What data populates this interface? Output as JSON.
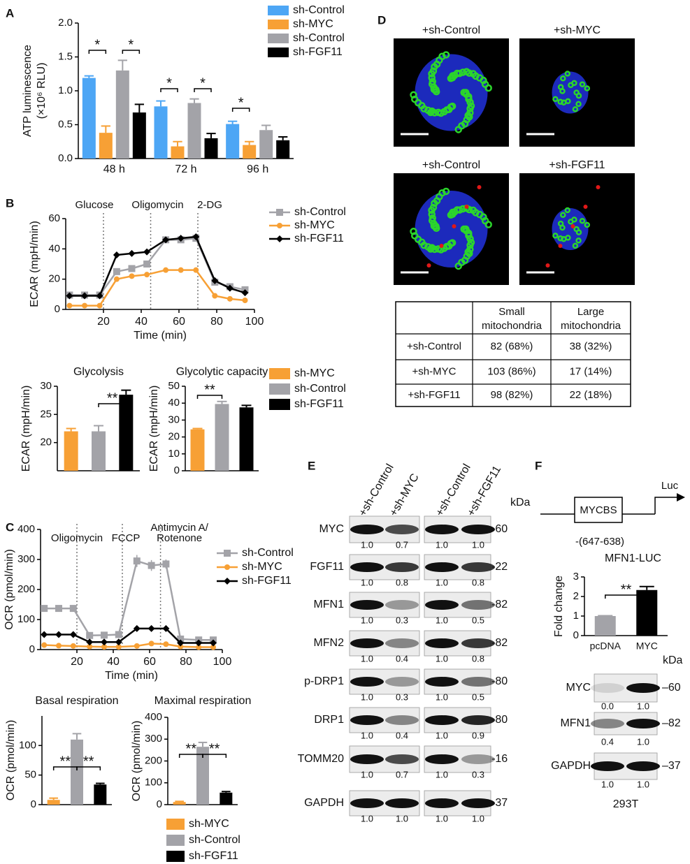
{
  "panel_labels": [
    "A",
    "B",
    "C",
    "D",
    "E",
    "F"
  ],
  "chart_data": [
    {
      "type": "bar",
      "ylabel": [
        "ATP luminescence",
        "(×10⁶ RLU)"
      ],
      "categories": [
        "48 h",
        "72 h",
        "96 h"
      ],
      "series": [
        {
          "name": "sh-Control",
          "color": "#4da6f5",
          "values": [
            1.19,
            0.77,
            0.51
          ],
          "errors": [
            0.03,
            0.08,
            0.04
          ]
        },
        {
          "name": "sh-MYC",
          "color": "#f7a035",
          "values": [
            0.38,
            0.18,
            0.2
          ],
          "errors": [
            0.1,
            0.07,
            0.05
          ]
        },
        {
          "name": "sh-Control",
          "color": "#a3a3a8",
          "values": [
            1.3,
            0.82,
            0.42
          ],
          "errors": [
            0.15,
            0.06,
            0.07
          ]
        },
        {
          "name": "sh-FGF11",
          "color": "#000000",
          "values": [
            0.68,
            0.3,
            0.27
          ],
          "errors": [
            0.12,
            0.07,
            0.05
          ]
        }
      ],
      "ylim": [
        0,
        2
      ],
      "yticks": [
        {
          "value": 0,
          "label": "0.0"
        },
        0.5,
        {
          "value": 1,
          "label": "1.0"
        },
        1.5,
        {
          "value": 2,
          "label": "2.0"
        }
      ],
      "annotations": [
        "*",
        "*",
        "*",
        "*",
        "*"
      ]
    },
    {
      "type": "line",
      "xlabel": "Time (min)",
      "ylabel": "ECAR (mpH/min)",
      "x": [
        2,
        10,
        18,
        27,
        35,
        43,
        53,
        61,
        69,
        79,
        87,
        95
      ],
      "series": [
        {
          "name": "sh-Control",
          "color": "#a3a3a8",
          "marker": "square",
          "values": [
            9.5,
            9.5,
            9.5,
            25,
            27,
            30,
            46,
            46,
            47,
            18,
            15,
            13
          ]
        },
        {
          "name": "sh-MYC",
          "color": "#f7a035",
          "marker": "circle",
          "values": [
            2.5,
            2.5,
            2.5,
            20,
            22,
            23,
            26,
            26,
            26,
            9,
            7,
            6
          ]
        },
        {
          "name": "sh-FGF11",
          "color": "#000000",
          "marker": "diamond",
          "values": [
            9,
            9,
            9,
            36,
            37,
            38,
            46,
            47,
            48,
            19,
            14,
            11
          ]
        }
      ],
      "xlim": [
        0,
        100
      ],
      "xticks": [
        20,
        40,
        60,
        80,
        100
      ],
      "ylim": [
        0,
        60
      ],
      "yticks": [
        0,
        20,
        40,
        60
      ],
      "vlines": [
        {
          "x": 20,
          "label": "Glucose"
        },
        {
          "x": 45,
          "label": "Oligomycin"
        },
        {
          "x": 70,
          "label": "2-DG"
        }
      ]
    },
    {
      "type": "bar",
      "title": "Glycolysis",
      "ylabel": "ECAR (mpH/min)",
      "categories": [
        null
      ],
      "series": [
        {
          "name": "sh-MYC",
          "color": "#f7a035",
          "values": [
            22
          ],
          "errors": [
            0.5
          ]
        },
        {
          "name": "sh-Control",
          "color": "#a3a3a8",
          "values": [
            22
          ],
          "errors": [
            1
          ]
        },
        {
          "name": "sh-FGF11",
          "color": "#000000",
          "values": [
            28.5
          ],
          "errors": [
            0.8
          ]
        }
      ],
      "ylim": [
        15,
        30
      ],
      "yticks": [
        20,
        25,
        30
      ],
      "annotations": [
        "**"
      ]
    },
    {
      "type": "bar",
      "title": "Glycolytic capacity",
      "ylabel": "ECAR (mpH/min)",
      "categories": [
        null
      ],
      "series": [
        {
          "name": "sh-MYC",
          "color": "#f7a035",
          "values": [
            24.5
          ],
          "errors": [
            0.5
          ]
        },
        {
          "name": "sh-Control",
          "color": "#a3a3a8",
          "values": [
            39.5
          ],
          "errors": [
            1.5
          ]
        },
        {
          "name": "sh-FGF11",
          "color": "#000000",
          "values": [
            37.5
          ],
          "errors": [
            1.2
          ]
        }
      ],
      "ylim": [
        0,
        50
      ],
      "yticks": [
        0,
        10,
        20,
        30,
        40,
        50
      ],
      "annotations": [
        "**"
      ]
    },
    {
      "type": "line",
      "xlabel": "Time (min)",
      "ylabel": "OCR (pmol/min)",
      "x": [
        2,
        10,
        18,
        27,
        35,
        43,
        53,
        61,
        69,
        77,
        87,
        95
      ],
      "series": [
        {
          "name": "sh-Control",
          "color": "#a3a3a8",
          "marker": "square",
          "values": [
            137,
            137,
            137,
            47,
            48,
            50,
            295,
            280,
            285,
            35,
            32,
            32
          ],
          "errors": [
            6,
            5,
            5,
            4,
            4,
            4,
            20,
            18,
            15,
            4,
            4,
            4
          ]
        },
        {
          "name": "sh-MYC",
          "color": "#f7a035",
          "marker": "circle",
          "values": [
            15,
            13,
            12,
            10,
            9,
            9,
            12,
            20,
            18,
            10,
            8,
            8
          ]
        },
        {
          "name": "sh-FGF11",
          "color": "#000000",
          "marker": "diamond",
          "values": [
            50,
            50,
            50,
            25,
            25,
            25,
            70,
            70,
            70,
            22,
            22,
            22
          ]
        }
      ],
      "xlim": [
        0,
        100
      ],
      "xticks": [
        20,
        40,
        60,
        80,
        100
      ],
      "ylim": [
        0,
        400
      ],
      "yticks": [
        0,
        100,
        200,
        300,
        400
      ],
      "vlines": [
        {
          "x": 20,
          "label": [
            "Oligomycin"
          ]
        },
        {
          "x": 45,
          "label": [
            "FCCP"
          ]
        },
        {
          "x": 66,
          "label": [
            "Antimycin A/",
            "Rotenone"
          ]
        }
      ]
    },
    {
      "type": "bar",
      "title": "Basal respiration",
      "ylabel": "OCR (pmol/min)",
      "categories": [
        null
      ],
      "series": [
        {
          "name": "sh-MYC",
          "color": "#f7a035",
          "values": [
            8
          ],
          "errors": [
            3
          ]
        },
        {
          "name": "sh-Control",
          "color": "#a3a3a8",
          "values": [
            110
          ],
          "errors": [
            10
          ]
        },
        {
          "name": "sh-FGF11",
          "color": "#000000",
          "values": [
            34
          ],
          "errors": [
            2
          ]
        }
      ],
      "ylim": [
        0,
        150
      ],
      "yticks": [
        0,
        50,
        100
      ],
      "annotations": [
        "**",
        "**"
      ]
    },
    {
      "type": "bar",
      "title": "Maximal respiration",
      "ylabel": "OCR (pmol/min)",
      "categories": [
        null
      ],
      "series": [
        {
          "name": "sh-MYC",
          "color": "#f7a035",
          "values": [
            12
          ],
          "errors": [
            3
          ]
        },
        {
          "name": "sh-Control",
          "color": "#a3a3a8",
          "values": [
            265
          ],
          "errors": [
            20
          ]
        },
        {
          "name": "sh-FGF11",
          "color": "#000000",
          "values": [
            55
          ],
          "errors": [
            5
          ]
        }
      ],
      "ylim": [
        0,
        400
      ],
      "yticks": [
        0,
        100,
        200,
        300,
        400
      ],
      "annotations": [
        "**",
        "**"
      ]
    },
    {
      "type": "bar",
      "title": "MFN1-LUC",
      "ylabel": "Fold change",
      "categories": [
        "pcDNA",
        "MYC"
      ],
      "series": [
        {
          "colors": [
            "#a3a3a8",
            "#000000"
          ],
          "values": [
            1,
            2.33
          ],
          "errors": [
            0.02,
            0.18
          ]
        }
      ],
      "ylim": [
        0,
        3
      ],
      "yticks": [
        0,
        1,
        2,
        3
      ],
      "annotations": [
        "**"
      ]
    }
  ],
  "micrographs": [
    "+sh-Control",
    "+sh-MYC",
    "+sh-Control",
    "+sh-FGF11"
  ],
  "table": {
    "header": [
      [
        "Small",
        "mitochondria"
      ],
      [
        "Large",
        "mitochondria"
      ]
    ],
    "rows": [
      [
        "+sh-Control",
        "82 (68%)",
        "38 (32%)"
      ],
      [
        "+sh-MYC",
        "103 (86%)",
        "17 (14%)"
      ],
      [
        "+sh-FGF11",
        "98 (82%)",
        "22 (18%)"
      ]
    ]
  },
  "blot_e": {
    "columns": [
      "+sh-Control",
      "+sh-MYC",
      "+sh-Control",
      "+sh-FGF11"
    ],
    "unit": "kDa",
    "rows": [
      {
        "name": "MYC",
        "kda": "-60",
        "values": [
          "1.0",
          "0.7",
          "1.0",
          "1.0"
        ]
      },
      {
        "name": "FGF11",
        "kda": "-22",
        "values": [
          "1.0",
          "0.8",
          "1.0",
          "0.8"
        ]
      },
      {
        "name": "MFN1",
        "kda": "-82",
        "values": [
          "1.0",
          "0.3",
          "1.0",
          "0.5"
        ]
      },
      {
        "name": "MFN2",
        "kda": "-82",
        "values": [
          "1.0",
          "0.4",
          "1.0",
          "0.8"
        ]
      },
      {
        "name": "p-DRP1",
        "kda": "-80",
        "values": [
          "1.0",
          "0.3",
          "1.0",
          "0.5"
        ]
      },
      {
        "name": "DRP1",
        "kda": "-80",
        "values": [
          "1.0",
          "0.4",
          "1.0",
          "0.9"
        ]
      },
      {
        "name": "TOMM20",
        "kda": "-16",
        "values": [
          "1.0",
          "0.7",
          "1.0",
          "0.3"
        ]
      },
      {
        "name": "GAPDH",
        "kda": "-37",
        "values": [
          "1.0",
          "1.0",
          "1.0",
          "1.0"
        ]
      }
    ]
  },
  "promoter": {
    "site": "MYCBS",
    "reporter": "Luc",
    "position": "-(647-638)"
  },
  "blot_f": {
    "unit": "kDa",
    "cell_line": "293T",
    "rows": [
      {
        "name": "MYC",
        "kda": "–60",
        "values": [
          "0.0",
          "1.0"
        ]
      },
      {
        "name": "MFN1",
        "kda": "–82",
        "values": [
          "0.4",
          "1.0"
        ]
      },
      {
        "name": "GAPDH",
        "kda": "–37",
        "values": [
          "1.0",
          "1.0"
        ]
      }
    ]
  }
}
